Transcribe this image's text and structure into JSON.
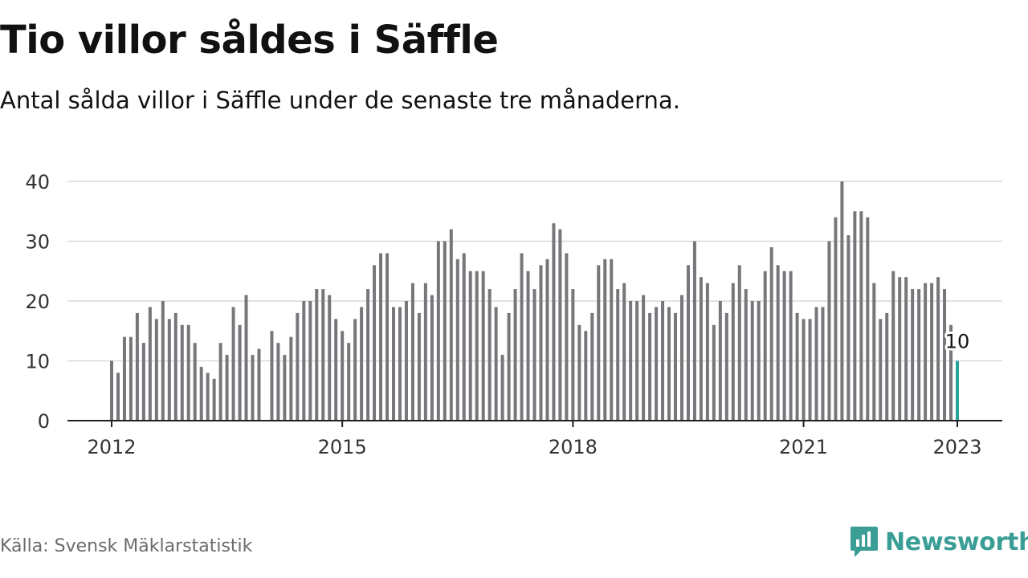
{
  "header": {
    "title": "Tio villor såldes i Säffle",
    "subtitle": "Antal sålda villor i Säffle under de senaste tre månaderna."
  },
  "footer": {
    "source": "Källa: Svensk Mäklarstatistik",
    "brand": "Newsworthy",
    "brand_icon": "newsworthy-logo-icon"
  },
  "colors": {
    "bar": "#77777b",
    "highlight": "#26a69a",
    "grid": "#d9d9d9",
    "axis": "#222222",
    "brand": "#3a9e96"
  },
  "chart_data": {
    "type": "bar",
    "title": "Tio villor såldes i Säffle",
    "subtitle": "Antal sålda villor i Säffle under de senaste tre månaderna.",
    "xlabel": "",
    "ylabel": "",
    "ylim": [
      0,
      40
    ],
    "yticks": [
      0,
      10,
      20,
      30,
      40
    ],
    "grid": true,
    "x_start": "2012-01",
    "x_end": "2023-01",
    "xticks": [
      {
        "label": "2012",
        "date": "2012-01"
      },
      {
        "label": "2015",
        "date": "2015-01"
      },
      {
        "label": "2018",
        "date": "2018-01"
      },
      {
        "label": "2021",
        "date": "2021-01"
      },
      {
        "label": "2023",
        "date": "2023-01"
      }
    ],
    "categories": [
      "2012-01",
      "2012-02",
      "2012-03",
      "2012-04",
      "2012-05",
      "2012-06",
      "2012-07",
      "2012-08",
      "2012-09",
      "2012-10",
      "2012-11",
      "2012-12",
      "2013-01",
      "2013-02",
      "2013-03",
      "2013-04",
      "2013-05",
      "2013-06",
      "2013-07",
      "2013-08",
      "2013-09",
      "2013-10",
      "2013-11",
      "2013-12",
      "2014-01",
      "2014-02",
      "2014-03",
      "2014-04",
      "2014-05",
      "2014-06",
      "2014-07",
      "2014-08",
      "2014-09",
      "2014-10",
      "2014-11",
      "2014-12",
      "2015-01",
      "2015-02",
      "2015-03",
      "2015-04",
      "2015-05",
      "2015-06",
      "2015-07",
      "2015-08",
      "2015-09",
      "2015-10",
      "2015-11",
      "2015-12",
      "2016-01",
      "2016-02",
      "2016-03",
      "2016-04",
      "2016-05",
      "2016-06",
      "2016-07",
      "2016-08",
      "2016-09",
      "2016-10",
      "2016-11",
      "2016-12",
      "2017-01",
      "2017-02",
      "2017-03",
      "2017-04",
      "2017-05",
      "2017-06",
      "2017-07",
      "2017-08",
      "2017-09",
      "2017-10",
      "2017-11",
      "2017-12",
      "2018-01",
      "2018-02",
      "2018-03",
      "2018-04",
      "2018-05",
      "2018-06",
      "2018-07",
      "2018-08",
      "2018-09",
      "2018-10",
      "2018-11",
      "2018-12",
      "2019-01",
      "2019-02",
      "2019-03",
      "2019-04",
      "2019-05",
      "2019-06",
      "2019-07",
      "2019-08",
      "2019-09",
      "2019-10",
      "2019-11",
      "2019-12",
      "2020-01",
      "2020-02",
      "2020-03",
      "2020-04",
      "2020-05",
      "2020-06",
      "2020-07",
      "2020-08",
      "2020-09",
      "2020-10",
      "2020-11",
      "2020-12",
      "2021-01",
      "2021-02",
      "2021-03",
      "2021-04",
      "2021-05",
      "2021-06",
      "2021-07",
      "2021-08",
      "2021-09",
      "2021-10",
      "2021-11",
      "2021-12",
      "2022-01",
      "2022-02",
      "2022-03",
      "2022-04",
      "2022-05",
      "2022-06",
      "2022-07",
      "2022-08",
      "2022-09",
      "2022-10",
      "2022-11",
      "2022-12",
      "2023-01"
    ],
    "values": [
      10,
      8,
      14,
      14,
      18,
      13,
      19,
      17,
      20,
      17,
      18,
      16,
      16,
      13,
      9,
      8,
      7,
      13,
      11,
      19,
      16,
      21,
      11,
      12,
      null,
      15,
      13,
      11,
      14,
      18,
      20,
      20,
      22,
      22,
      21,
      17,
      15,
      13,
      17,
      19,
      22,
      26,
      28,
      28,
      19,
      19,
      20,
      23,
      18,
      23,
      21,
      30,
      30,
      32,
      27,
      28,
      25,
      25,
      25,
      22,
      19,
      11,
      18,
      22,
      28,
      25,
      22,
      26,
      27,
      33,
      32,
      28,
      22,
      16,
      15,
      18,
      26,
      27,
      27,
      22,
      23,
      20,
      20,
      21,
      18,
      19,
      20,
      19,
      18,
      21,
      26,
      30,
      24,
      23,
      16,
      20,
      18,
      23,
      26,
      22,
      20,
      20,
      25,
      29,
      26,
      25,
      25,
      18,
      17,
      17,
      19,
      19,
      30,
      34,
      40,
      31,
      35,
      35,
      34,
      23,
      17,
      18,
      25,
      24,
      24,
      22,
      22,
      23,
      23,
      24,
      22,
      16,
      10
    ],
    "highlight": {
      "date": "2023-01",
      "value": 10,
      "label": "10"
    }
  }
}
